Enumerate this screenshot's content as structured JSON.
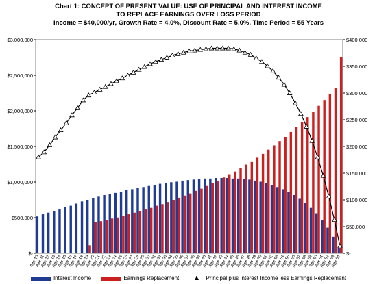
{
  "title": {
    "line1": "Chart 1: CONCEPT OF PRESENT VALUE: USE OF PRINCIPAL AND INTEREST INCOME",
    "line2": "TO REPLACE EARNINGS OVER LOSS PERIOD",
    "line3": "Income = $40,000/yr,  Growth Rate = 4.0%, Discount Rate = 5.0%, Time Period = 55 Years"
  },
  "colors": {
    "interest": "#1f3b94",
    "earnings": "#cc1f1f",
    "line": "#000000",
    "plot_border": "#808080"
  },
  "chart_data": {
    "type": "bar",
    "categories": [
      "Age 10",
      "Age 11",
      "Age 12",
      "Age 13",
      "Age 14",
      "Age 15",
      "Age 16",
      "Age 17",
      "Age 18",
      "Age 19",
      "Age 20",
      "Age 21",
      "Age 22",
      "Age 23",
      "Age 24",
      "Age 25",
      "Age 26",
      "Age 27",
      "Age 28",
      "Age 29",
      "Age 30",
      "Age 31",
      "Age 32",
      "Age 33",
      "Age 34",
      "Age 35",
      "Age 36",
      "Age 37",
      "Age 38",
      "Age 39",
      "Age 40",
      "Age 41",
      "Age 42",
      "Age 43",
      "Age 44",
      "Age 45",
      "Age 46",
      "Age 47",
      "Age 48",
      "Age 49",
      "Age 50",
      "Age 51",
      "Age 52",
      "Age 53",
      "Age 54",
      "Age 55",
      "Age 56",
      "Age 57",
      "Age 58",
      "Age 59",
      "Age 60",
      "Age 61",
      "Age 62",
      "Age 63",
      "Age 64"
    ],
    "series": [
      {
        "name": "Interest Income",
        "axis": "right",
        "values": [
          69000,
          73000,
          76000,
          79000,
          82000,
          86000,
          89000,
          93000,
          97000,
          100000,
          103000,
          106000,
          109000,
          111000,
          113000,
          115000,
          118000,
          120000,
          122000,
          124000,
          126000,
          128000,
          130000,
          132000,
          133000,
          134000,
          136000,
          137000,
          138000,
          139000,
          140000,
          140000,
          141000,
          141000,
          141000,
          140000,
          140000,
          139000,
          138000,
          136000,
          134000,
          131000,
          128000,
          124000,
          120000,
          115000,
          109000,
          102000,
          94000,
          85000,
          75000,
          62000,
          48000,
          31000,
          12000
        ]
      },
      {
        "name": "Earnings Replacement",
        "axis": "right",
        "values": [
          0,
          0,
          0,
          0,
          0,
          0,
          0,
          0,
          0,
          15000,
          58000,
          60000,
          62000,
          65000,
          67000,
          70000,
          73000,
          76000,
          79000,
          82000,
          85000,
          89000,
          92000,
          96000,
          100000,
          104000,
          108000,
          112000,
          117000,
          121000,
          126000,
          131000,
          136000,
          142000,
          148000,
          153000,
          160000,
          166000,
          172000,
          179000,
          186000,
          194000,
          202000,
          210000,
          218000,
          227000,
          236000,
          245000,
          255000,
          265000,
          276000,
          287000,
          298000,
          310000,
          368000
        ]
      },
      {
        "name": "Principal plus Interest Income less Earnings Replacement",
        "axis": "left",
        "values": [
          1350000,
          1420000,
          1520000,
          1630000,
          1730000,
          1830000,
          1940000,
          2040000,
          2150000,
          2220000,
          2260000,
          2300000,
          2340000,
          2380000,
          2420000,
          2460000,
          2500000,
          2540000,
          2580000,
          2620000,
          2660000,
          2690000,
          2720000,
          2750000,
          2780000,
          2800000,
          2820000,
          2840000,
          2850000,
          2860000,
          2870000,
          2880000,
          2880000,
          2880000,
          2880000,
          2870000,
          2850000,
          2820000,
          2790000,
          2740000,
          2690000,
          2630000,
          2560000,
          2470000,
          2370000,
          2250000,
          2110000,
          1960000,
          1780000,
          1580000,
          1350000,
          1090000,
          800000,
          470000,
          100000
        ]
      }
    ],
    "left_axis": {
      "min": 0,
      "max": 3000000,
      "step": 500000,
      "ticks": [
        "$-",
        "$500,000",
        "$1,000,000",
        "$1,500,000",
        "$2,000,000",
        "$2,500,000",
        "$3,000,000"
      ]
    },
    "right_axis": {
      "min": 0,
      "max": 400000,
      "step": 50000,
      "ticks": [
        "$-",
        "$50,000",
        "$100,000",
        "$150,000",
        "$200,000",
        "$250,000",
        "$300,000",
        "$350,000",
        "$400,000"
      ]
    },
    "grid": false,
    "legend_position": "bottom"
  }
}
